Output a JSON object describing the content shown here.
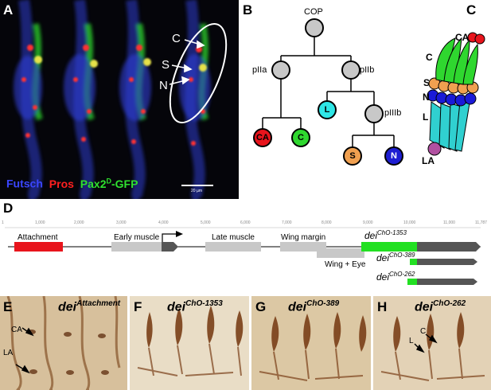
{
  "panel_letters": {
    "a": "A",
    "b": "B",
    "c": "C",
    "d": "D",
    "e": "E",
    "f": "F",
    "g": "G",
    "h": "H"
  },
  "panel_a": {
    "labels": {
      "c": "C",
      "s": "S",
      "n": "N"
    },
    "legend": {
      "futsch": "Futsch",
      "pros": "Pros",
      "pax": "Pax2",
      "pax_sup": "D",
      "pax_suffix": "-GFP"
    },
    "scale_bar": "20 µm",
    "colors": {
      "futsch": "#3a46ff",
      "pros": "#ff2020",
      "pax": "#2fe02f"
    }
  },
  "panel_b": {
    "nodes": {
      "cop": "COP",
      "piia": "pIIa",
      "piib": "pIIb",
      "piiib": "pIIIb",
      "ca": "CA",
      "c": "C",
      "l": "L",
      "s": "S",
      "n": "N"
    },
    "colors": {
      "grey": "#c8c8c8",
      "ca": "#e8141c",
      "c": "#2fd72f",
      "l": "#2ee6e6",
      "s": "#f0a050",
      "n": "#1e1ed2"
    }
  },
  "panel_c": {
    "labels": {
      "ca": "CA",
      "c": "C",
      "s": "S",
      "n": "N",
      "l": "L",
      "la": "LA"
    }
  },
  "panel_d": {
    "ticks": [
      "1",
      "1,000",
      "2,000",
      "3,000",
      "4,000",
      "5,000",
      "6,000",
      "7,000",
      "8,000",
      "9,000",
      "10,000",
      "11,000",
      "11,787"
    ],
    "features": {
      "attachment": "Attachment",
      "early_muscle": "Early muscle",
      "late_muscle": "Late muscle",
      "wing_margin": "Wing margin",
      "wing_eye": "Wing + Eye"
    },
    "constructs": [
      {
        "base": "dei",
        "sup": "ChO-1353"
      },
      {
        "base": "dei",
        "sup": "ChO-389"
      },
      {
        "base": "dei",
        "sup": "ChO-262"
      }
    ],
    "colors": {
      "attachment": "#e8141c",
      "construct": "#22e022",
      "exon": "#555555",
      "enhancer": "#c8c8c8"
    }
  },
  "panel_e": {
    "base": "dei",
    "sup": "Attachment",
    "labels": {
      "ca": "CA",
      "la": "LA"
    }
  },
  "panel_f": {
    "base": "dei",
    "sup": "ChO-1353"
  },
  "panel_g": {
    "base": "dei",
    "sup": "ChO-389"
  },
  "panel_h": {
    "base": "dei",
    "sup": "ChO-262",
    "labels": {
      "c": "C",
      "l": "L"
    }
  }
}
